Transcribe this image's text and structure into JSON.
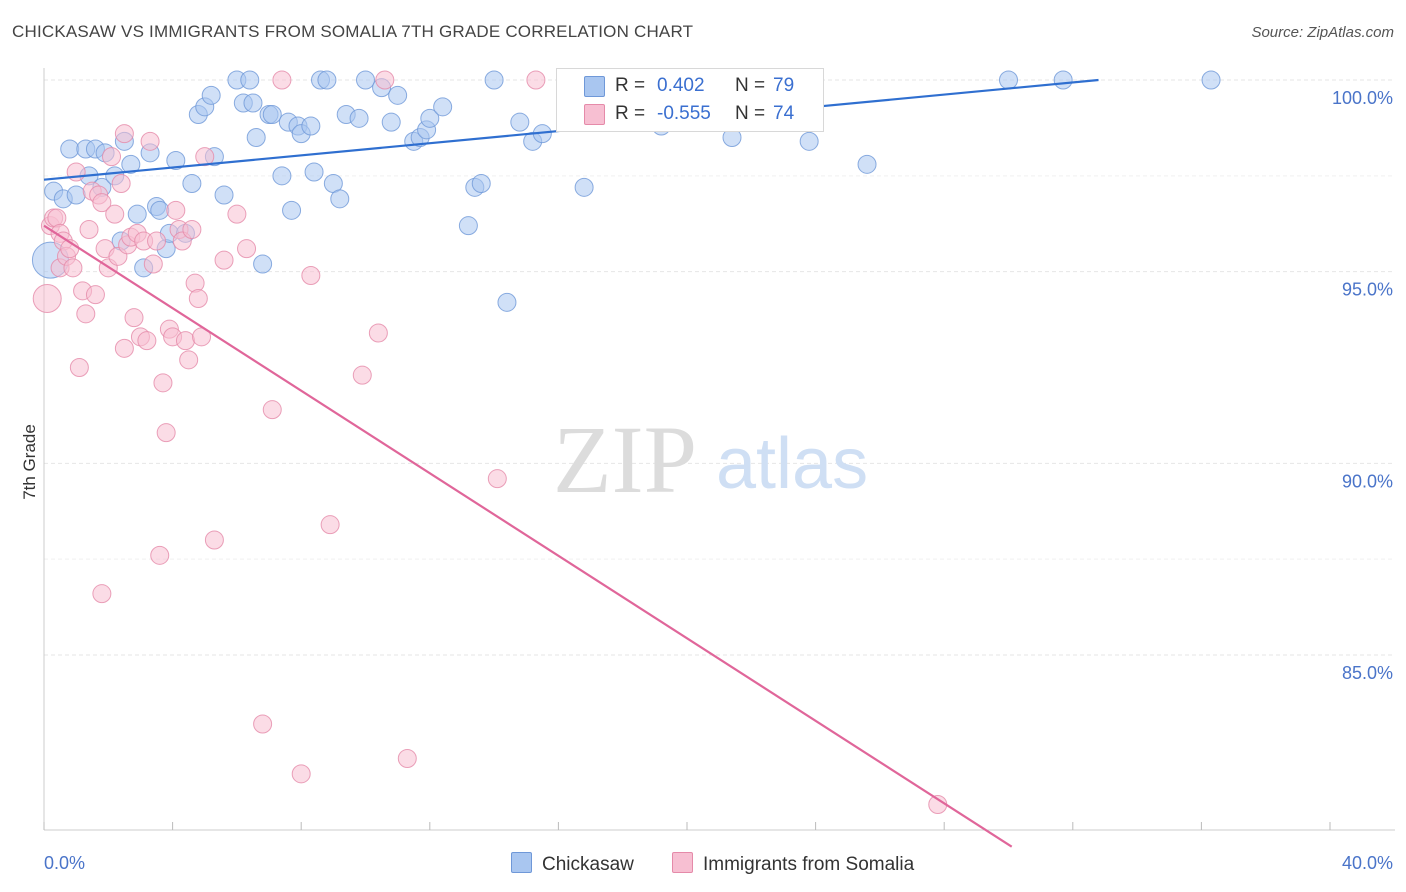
{
  "title": "CHICKASAW VS IMMIGRANTS FROM SOMALIA 7TH GRADE CORRELATION CHART",
  "source": "Source: ZipAtlas.com",
  "watermark": {
    "zip": "ZIP",
    "atlas": "atlas"
  },
  "legend": {
    "rows": [
      {
        "r_label": "R =",
        "r_value": "0.402",
        "n_label": "N =",
        "n_value": "79",
        "color": "#a9c6f0",
        "border": "#6f98d8"
      },
      {
        "r_label": "R =",
        "r_value": "-0.555",
        "n_label": "N =",
        "n_value": "74",
        "color": "#f7bfd2",
        "border": "#e58aa9"
      }
    ]
  },
  "bottom_legend": {
    "series1": "Chickasaw",
    "series2": "Immigrants from Somalia"
  },
  "chart_data": {
    "type": "scatter",
    "title": "CHICKASAW VS IMMIGRANTS FROM SOMALIA 7TH GRADE CORRELATION CHART",
    "xlabel": "",
    "ylabel": "7th Grade",
    "xlim": [
      0,
      40
    ],
    "ylim": [
      80.0,
      100.9
    ],
    "x_tick_labels": [
      {
        "value": 0,
        "label": "0.0%"
      },
      {
        "value": 40,
        "label": "40.0%"
      }
    ],
    "y_tick_labels": [
      {
        "value": 100,
        "label": "100.0%"
      },
      {
        "value": 95,
        "label": "95.0%"
      },
      {
        "value": 90,
        "label": "90.0%"
      },
      {
        "value": 85,
        "label": "85.0%"
      }
    ],
    "grid": true,
    "legend_position": "top-center",
    "series": [
      {
        "name": "Chickasaw",
        "color": "#a9c6f0",
        "edge": "#6f98d8",
        "trend": {
          "x": [
            0,
            32.8
          ],
          "y": [
            97.4,
            100.0
          ],
          "color": "#2f6fd0"
        },
        "points": [
          [
            0.2,
            95.3
          ],
          [
            0.3,
            97.1
          ],
          [
            0.6,
            96.9
          ],
          [
            0.8,
            98.2
          ],
          [
            1.0,
            97.0
          ],
          [
            1.3,
            98.2
          ],
          [
            1.4,
            97.5
          ],
          [
            1.6,
            98.2
          ],
          [
            1.8,
            97.2
          ],
          [
            1.9,
            98.1
          ],
          [
            2.2,
            97.5
          ],
          [
            2.4,
            95.8
          ],
          [
            2.5,
            98.4
          ],
          [
            2.7,
            97.8
          ],
          [
            2.9,
            96.5
          ],
          [
            3.1,
            95.1
          ],
          [
            3.3,
            98.1
          ],
          [
            3.5,
            96.7
          ],
          [
            3.6,
            96.6
          ],
          [
            3.8,
            95.6
          ],
          [
            3.9,
            96.0
          ],
          [
            4.1,
            97.9
          ],
          [
            4.4,
            96.0
          ],
          [
            4.6,
            97.3
          ],
          [
            4.8,
            99.1
          ],
          [
            5.0,
            99.3
          ],
          [
            5.2,
            99.6
          ],
          [
            5.3,
            98.0
          ],
          [
            5.6,
            97.0
          ],
          [
            6.0,
            100.0
          ],
          [
            6.2,
            99.4
          ],
          [
            6.4,
            100.0
          ],
          [
            6.5,
            99.4
          ],
          [
            6.6,
            98.5
          ],
          [
            6.8,
            95.2
          ],
          [
            7.0,
            99.1
          ],
          [
            7.1,
            99.1
          ],
          [
            7.4,
            97.5
          ],
          [
            7.6,
            98.9
          ],
          [
            7.7,
            96.6
          ],
          [
            7.9,
            98.8
          ],
          [
            8.0,
            98.6
          ],
          [
            8.3,
            98.8
          ],
          [
            8.4,
            97.6
          ],
          [
            8.6,
            100.0
          ],
          [
            8.8,
            100.0
          ],
          [
            9.0,
            97.3
          ],
          [
            9.2,
            96.9
          ],
          [
            9.4,
            99.1
          ],
          [
            9.8,
            99.0
          ],
          [
            10.0,
            100.0
          ],
          [
            10.5,
            99.8
          ],
          [
            10.8,
            98.9
          ],
          [
            11.0,
            99.6
          ],
          [
            11.5,
            98.4
          ],
          [
            11.7,
            98.5
          ],
          [
            11.9,
            98.7
          ],
          [
            12.0,
            99.0
          ],
          [
            12.4,
            99.3
          ],
          [
            13.2,
            96.2
          ],
          [
            13.4,
            97.2
          ],
          [
            13.6,
            97.3
          ],
          [
            14.0,
            100.0
          ],
          [
            14.4,
            94.2
          ],
          [
            14.8,
            98.9
          ],
          [
            15.2,
            98.4
          ],
          [
            15.5,
            98.6
          ],
          [
            16.4,
            100.0
          ],
          [
            16.8,
            97.2
          ],
          [
            18.0,
            100.0
          ],
          [
            19.2,
            98.8
          ],
          [
            19.9,
            100.0
          ],
          [
            21.4,
            98.5
          ],
          [
            22.6,
            100.0
          ],
          [
            23.8,
            98.4
          ],
          [
            25.6,
            97.8
          ],
          [
            30.0,
            100.0
          ],
          [
            31.7,
            100.0
          ],
          [
            36.3,
            100.0
          ]
        ]
      },
      {
        "name": "Immigrants from Somalia",
        "color": "#f7bfd2",
        "edge": "#e58aa9",
        "trend": {
          "x": [
            0,
            30.1
          ],
          "y": [
            96.2,
            80.0
          ],
          "color": "#e0669a"
        },
        "points": [
          [
            0.1,
            94.3
          ],
          [
            0.2,
            96.2
          ],
          [
            0.3,
            96.4
          ],
          [
            0.4,
            96.4
          ],
          [
            0.5,
            96.0
          ],
          [
            0.5,
            95.1
          ],
          [
            0.6,
            95.8
          ],
          [
            0.7,
            95.4
          ],
          [
            0.8,
            95.6
          ],
          [
            0.9,
            95.1
          ],
          [
            1.0,
            97.6
          ],
          [
            1.1,
            92.5
          ],
          [
            1.2,
            94.5
          ],
          [
            1.3,
            93.9
          ],
          [
            1.4,
            96.1
          ],
          [
            1.5,
            97.1
          ],
          [
            1.6,
            94.4
          ],
          [
            1.7,
            97.0
          ],
          [
            1.8,
            96.8
          ],
          [
            1.8,
            86.6
          ],
          [
            1.9,
            95.6
          ],
          [
            2.0,
            95.1
          ],
          [
            2.1,
            98.0
          ],
          [
            2.2,
            96.5
          ],
          [
            2.3,
            95.4
          ],
          [
            2.4,
            97.3
          ],
          [
            2.5,
            98.6
          ],
          [
            2.5,
            93.0
          ],
          [
            2.6,
            95.7
          ],
          [
            2.7,
            95.9
          ],
          [
            2.8,
            93.8
          ],
          [
            2.9,
            96.0
          ],
          [
            3.0,
            93.3
          ],
          [
            3.1,
            95.8
          ],
          [
            3.2,
            93.2
          ],
          [
            3.3,
            98.4
          ],
          [
            3.4,
            95.2
          ],
          [
            3.5,
            95.8
          ],
          [
            3.6,
            87.6
          ],
          [
            3.7,
            92.1
          ],
          [
            3.8,
            90.8
          ],
          [
            3.9,
            93.5
          ],
          [
            4.0,
            93.3
          ],
          [
            4.1,
            96.6
          ],
          [
            4.2,
            96.1
          ],
          [
            4.3,
            95.8
          ],
          [
            4.4,
            93.2
          ],
          [
            4.5,
            92.7
          ],
          [
            4.6,
            96.1
          ],
          [
            4.7,
            94.7
          ],
          [
            4.8,
            94.3
          ],
          [
            4.9,
            93.3
          ],
          [
            5.0,
            98.0
          ],
          [
            5.3,
            88.0
          ],
          [
            5.6,
            95.3
          ],
          [
            6.0,
            96.5
          ],
          [
            6.3,
            95.6
          ],
          [
            6.8,
            83.2
          ],
          [
            7.1,
            91.4
          ],
          [
            7.4,
            100.0
          ],
          [
            8.0,
            81.9
          ],
          [
            8.3,
            94.9
          ],
          [
            8.9,
            88.4
          ],
          [
            9.9,
            92.3
          ],
          [
            10.4,
            93.4
          ],
          [
            10.6,
            100.0
          ],
          [
            11.3,
            82.3
          ],
          [
            14.1,
            89.6
          ],
          [
            15.3,
            100.0
          ],
          [
            18.3,
            100.0
          ],
          [
            19.0,
            100.0
          ],
          [
            19.7,
            100.0
          ],
          [
            22.0,
            100.0
          ],
          [
            27.8,
            81.1
          ]
        ]
      }
    ]
  }
}
